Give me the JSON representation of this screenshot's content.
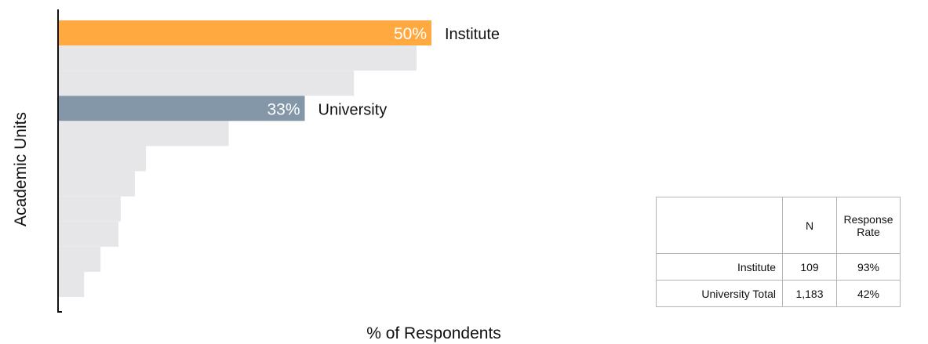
{
  "chart_data": {
    "type": "bar",
    "orientation": "horizontal",
    "xlabel": "% of Respondents",
    "ylabel": "Academic Units",
    "xlim": [
      0,
      100
    ],
    "bars": [
      {
        "value": 50,
        "label": "50%",
        "category": "Institute",
        "highlight": "institute"
      },
      {
        "value": 48
      },
      {
        "value": 39.6
      },
      {
        "value": 33,
        "label": "33%",
        "category": "University",
        "highlight": "university"
      },
      {
        "value": 22.8
      },
      {
        "value": 11.7
      },
      {
        "value": 10.2
      },
      {
        "value": 8.3
      },
      {
        "value": 8.0
      },
      {
        "value": 5.6
      },
      {
        "value": 3.4
      }
    ],
    "colors": {
      "institute": "#FFA940",
      "university": "#8497A8",
      "other": "#E6E6E8"
    }
  },
  "table": {
    "headers": [
      "",
      "N",
      "Response Rate"
    ],
    "rows": [
      {
        "name": "Institute",
        "n": "109",
        "rate": "93%"
      },
      {
        "name": "University Total",
        "n": "1,183",
        "rate": "42%"
      }
    ]
  }
}
